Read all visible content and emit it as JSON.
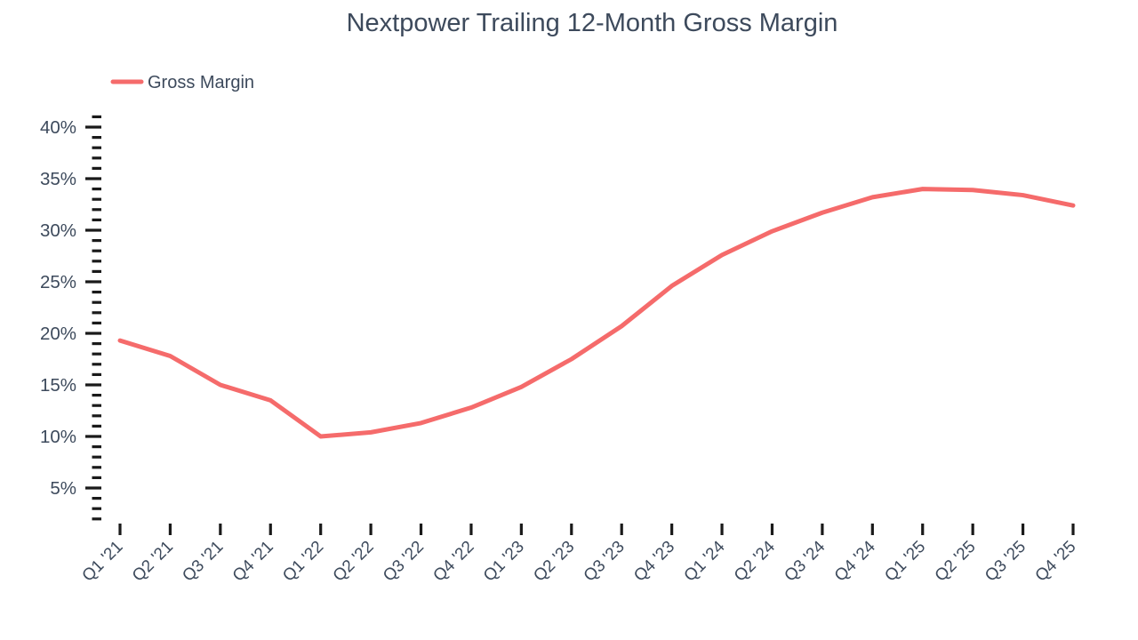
{
  "chart_data": {
    "type": "line",
    "title": "Nextpower Trailing 12-Month Gross Margin",
    "xlabel": "",
    "ylabel": "",
    "legend": {
      "position": "top-left",
      "entries": [
        {
          "label": "Gross Margin",
          "color": "#F56B6B"
        }
      ]
    },
    "categories": [
      "Q1 '21",
      "Q2 '21",
      "Q3 '21",
      "Q4 '21",
      "Q1 '22",
      "Q2 '22",
      "Q3 '22",
      "Q4 '22",
      "Q1 '23",
      "Q2 '23",
      "Q3 '23",
      "Q4 '23",
      "Q1 '24",
      "Q2 '24",
      "Q3 '24",
      "Q4 '24",
      "Q1 '25",
      "Q2 '25",
      "Q3 '25",
      "Q4 '25"
    ],
    "series": [
      {
        "name": "Gross Margin",
        "color": "#F56B6B",
        "unit": "%",
        "values": [
          19.3,
          17.8,
          15.0,
          13.5,
          10.0,
          10.4,
          11.3,
          12.8,
          14.8,
          17.5,
          20.7,
          24.6,
          27.6,
          29.9,
          31.7,
          33.2,
          34.0,
          33.9,
          33.4,
          32.4
        ]
      }
    ],
    "y_axis": {
      "major_tick_values": [
        5,
        10,
        15,
        20,
        25,
        30,
        35,
        40
      ],
      "major_tick_labels": [
        "5%",
        "10%",
        "15%",
        "20%",
        "25%",
        "30%",
        "35%",
        "40%"
      ],
      "minor_tick_step": 1,
      "minor_tick_min": 2,
      "minor_tick_max": 41
    },
    "ylim": [
      1.8,
      41.3
    ],
    "grid": false,
    "colors": {
      "text": "#3D4A5C",
      "tick": "#1A1A1A",
      "background": "#FFFFFF",
      "line": "#F56B6B"
    }
  }
}
